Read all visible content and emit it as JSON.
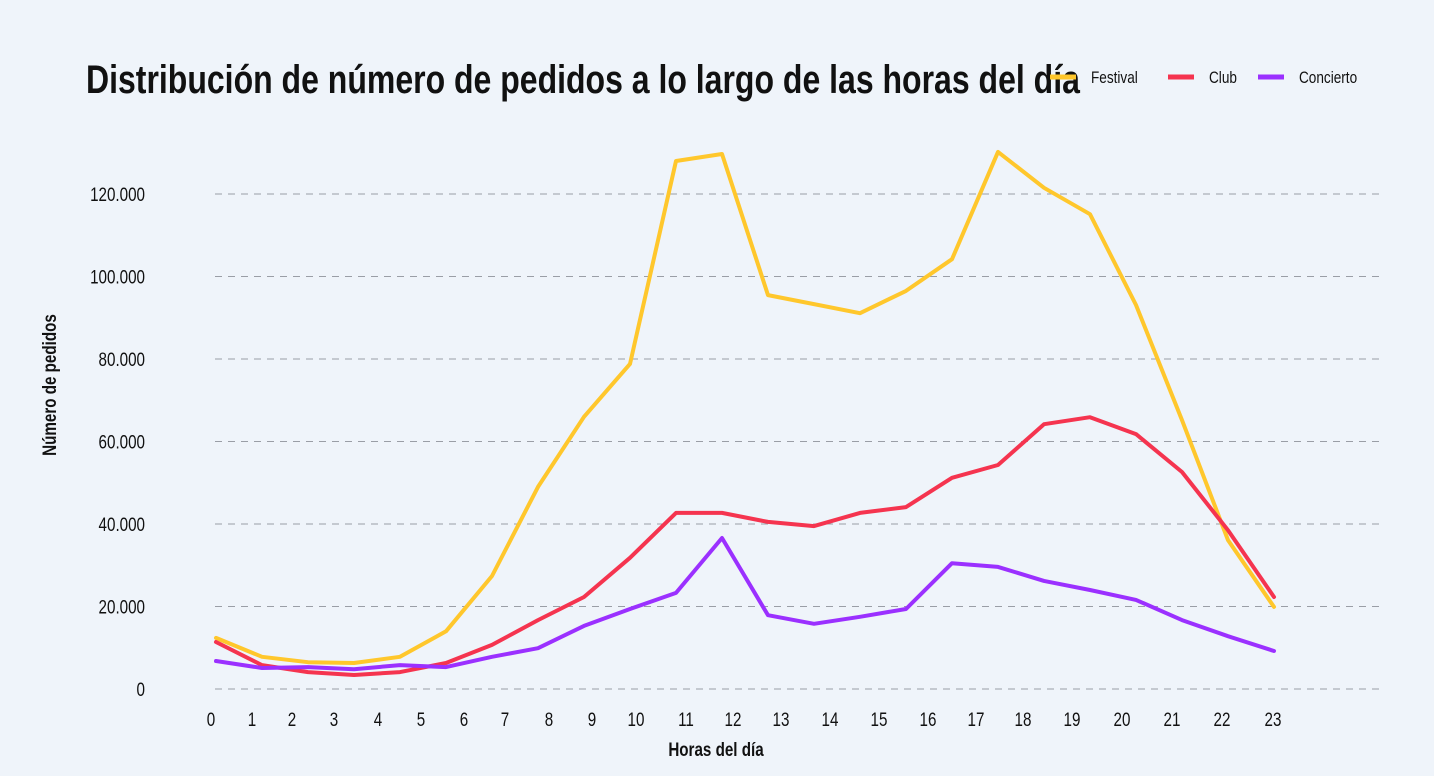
{
  "chart_data": {
    "type": "line",
    "title": "Distribución de número de pedidos a lo largo de las horas del día",
    "xlabel": "Horas del día",
    "ylabel": "Número de pedidos",
    "categories": [
      "0",
      "1",
      "2",
      "3",
      "4",
      "5",
      "6",
      "7",
      "8",
      "9",
      "10",
      "11",
      "12",
      "13",
      "14",
      "15",
      "16",
      "17",
      "18",
      "19",
      "20",
      "21",
      "22",
      "23"
    ],
    "yticks": [
      0,
      20000,
      40000,
      60000,
      80000,
      100000,
      120000
    ],
    "ytick_labels": [
      "0",
      "20.000",
      "40.000",
      "60.000",
      "80.000",
      "100.000",
      "120.000"
    ],
    "ylim": [
      0,
      130000
    ],
    "grid": "horizontal dashed",
    "legend_position": "top-right",
    "series": [
      {
        "name": "Festival",
        "color": "#ffc72c",
        "values": [
          12400,
          7800,
          6500,
          6300,
          7800,
          14000,
          27400,
          49000,
          66000,
          78800,
          128000,
          129700,
          95500,
          93300,
          91100,
          96500,
          104200,
          130200,
          121500,
          115100,
          93100,
          65200,
          36100,
          19900
        ]
      },
      {
        "name": "Club",
        "color": "#f5344f",
        "values": [
          11400,
          5800,
          4100,
          3400,
          4100,
          6300,
          10700,
          16700,
          22300,
          31800,
          42700,
          42700,
          40500,
          39500,
          42700,
          44100,
          51200,
          54300,
          64200,
          65900,
          61800,
          52600,
          38500,
          22300
        ]
      },
      {
        "name": "Concierto",
        "color": "#9b30ff",
        "values": [
          6800,
          5100,
          5300,
          4800,
          5800,
          5300,
          7800,
          9900,
          15300,
          19400,
          23300,
          36600,
          17900,
          15800,
          17500,
          19400,
          30500,
          29600,
          26200,
          24000,
          21600,
          16700,
          12800,
          9200
        ]
      }
    ]
  }
}
